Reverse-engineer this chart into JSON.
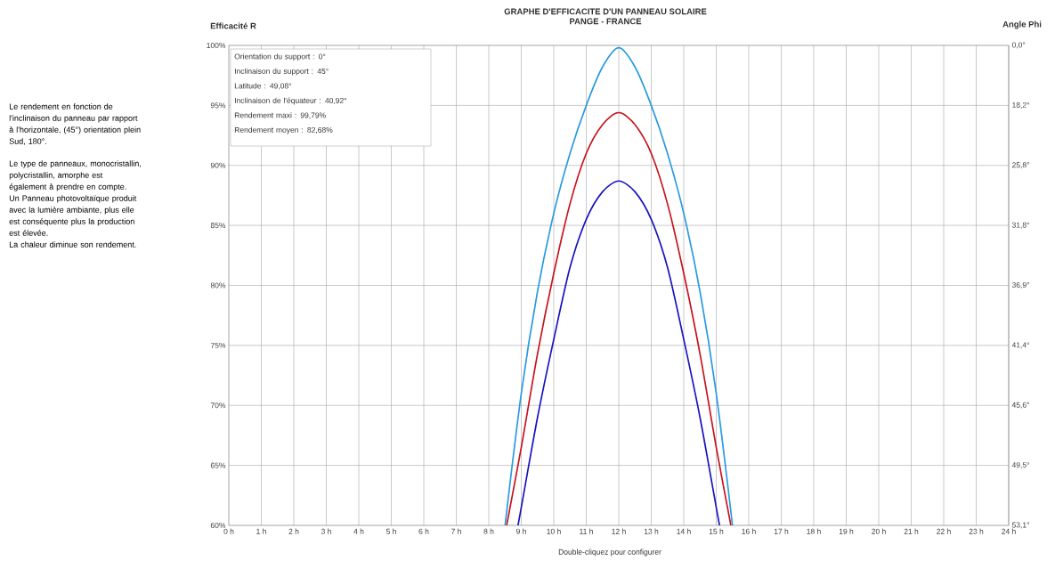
{
  "chart_data": {
    "type": "line",
    "title": "GRAPHE D'EFFICACITE D'UN PANNEAU SOLAIRE",
    "subtitle": "PANGE - FRANCE",
    "xlabel": "Double-cliquez pour configurer",
    "ylabel": "Efficacité R",
    "y2label": "Angle Phi",
    "annotations": [
      "Le rendement en fonction de l'inclinaison du panneau par rapport à l'horizontale, (45°) orientation plein Sud, 180°.",
      "Le type de panneaux, monocristallin, polycristallin, amorphe est également à prendre en compte. Un Panneau photovoltaïque produit avec la lumière ambiante, plus elle est conséquente plus la production est élevée.",
      "La chaleur diminue son rendement.",
      "Orientation du support : 0°",
      "Inclinaison du support : 45°",
      "Latitude : 49,08°",
      "Inclinaison de l'équateur : 40,92°",
      "Rendement maxi : 99,79%",
      "Rendement moyen : 82,68%"
    ],
    "xlim": [
      0,
      24
    ],
    "xticks": [
      {
        "value": 0,
        "label": "0 h"
      },
      {
        "value": 1,
        "label": "1 h"
      },
      {
        "value": 2,
        "label": "2 h"
      },
      {
        "value": 3,
        "label": "3 h"
      },
      {
        "value": 4,
        "label": "4 h"
      },
      {
        "value": 5,
        "label": "5 h"
      },
      {
        "value": 6,
        "label": "6 h"
      },
      {
        "value": 7,
        "label": "7 h"
      },
      {
        "value": 8,
        "label": "8 h"
      },
      {
        "value": 9,
        "label": "9 h"
      },
      {
        "value": 10,
        "label": "10 h"
      },
      {
        "value": 11,
        "label": "11 h"
      },
      {
        "value": 12,
        "label": "12 h"
      },
      {
        "value": 13,
        "label": "13 h"
      },
      {
        "value": 14,
        "label": "14 h"
      },
      {
        "value": 15,
        "label": "15 h"
      },
      {
        "value": 16,
        "label": "16 h"
      },
      {
        "value": 17,
        "label": "17 h"
      },
      {
        "value": 18,
        "label": "18 h"
      },
      {
        "value": 19,
        "label": "19 h"
      },
      {
        "value": 20,
        "label": "20 h"
      },
      {
        "value": 21,
        "label": "21 h"
      },
      {
        "value": 22,
        "label": "22 h"
      },
      {
        "value": 23,
        "label": "23 h"
      },
      {
        "value": 24,
        "label": "24 h"
      }
    ],
    "ylim": [
      60,
      100
    ],
    "yticks": [
      {
        "value": 60,
        "label": "60%"
      },
      {
        "value": 65,
        "label": "65%"
      },
      {
        "value": 70,
        "label": "70%"
      },
      {
        "value": 75,
        "label": "75%"
      },
      {
        "value": 80,
        "label": "80%"
      },
      {
        "value": 85,
        "label": "85%"
      },
      {
        "value": 90,
        "label": "90%"
      },
      {
        "value": 95,
        "label": "95%"
      },
      {
        "value": 100,
        "label": "100%"
      }
    ],
    "y2_categories": [
      "0,0°",
      "18,2°",
      "25,8°",
      "31,8°",
      "36,9°",
      "41,4°",
      "45,6°",
      "49,5°",
      "53,1°"
    ],
    "grid": true,
    "series": [
      {
        "color": "#2a9be0",
        "x": [
          8.5,
          9,
          9.5,
          10,
          10.5,
          11,
          11.5,
          12,
          12.5,
          13,
          13.5,
          14,
          14.5,
          15,
          15.5
        ],
        "values": [
          60,
          71,
          79.5,
          86,
          91,
          95,
          98.2,
          99.8,
          98.2,
          95,
          91,
          86,
          79.5,
          71,
          60
        ]
      },
      {
        "color": "#c8141e",
        "x": [
          8.55,
          9,
          9.5,
          10,
          10.5,
          11,
          11.5,
          12,
          12.5,
          13,
          13.5,
          14,
          14.5,
          15,
          15.45
        ],
        "values": [
          60,
          66.5,
          74.3,
          81,
          86.8,
          91,
          93.4,
          94.4,
          93.4,
          91,
          86.8,
          81,
          74.3,
          66.5,
          60
        ]
      },
      {
        "color": "#1a14c0",
        "x": [
          8.9,
          9,
          9.5,
          10,
          10.5,
          11,
          11.5,
          12,
          12.5,
          13,
          13.5,
          14,
          14.5,
          15,
          15.1
        ],
        "values": [
          60,
          61.5,
          69,
          75.5,
          81.5,
          85.5,
          87.8,
          88.7,
          87.8,
          85.5,
          81.5,
          75.5,
          69,
          61.5,
          60
        ]
      }
    ]
  }
}
